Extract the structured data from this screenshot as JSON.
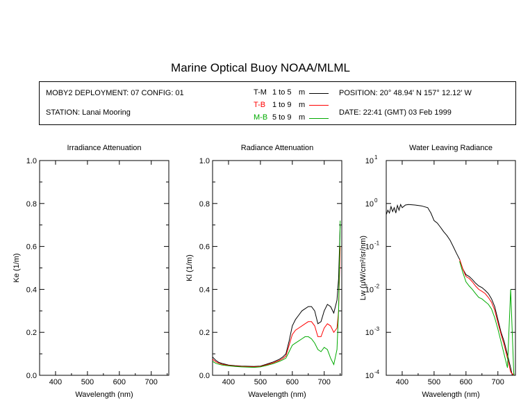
{
  "title": "Marine Optical Buoy NOAA/MLML",
  "info": {
    "deployment": "MOBY2 DEPLOYMENT: 07 CONFIG: 01",
    "station": "STATION: Lanai Mooring",
    "position": "POSITION: 20° 48.94' N   157° 12.12' W",
    "date": "DATE: 22:41 (GMT) 03 Feb 1999",
    "legend": [
      {
        "code": "T-M",
        "range": "1 to 5",
        "unit": "m",
        "color": "#000000"
      },
      {
        "code": "T-B",
        "range": "1 to 9",
        "unit": "m",
        "color": "#ff0000"
      },
      {
        "code": "M-B",
        "range": "5 to 9",
        "unit": "m",
        "color": "#00aa00"
      }
    ]
  },
  "chart_data": [
    {
      "type": "line",
      "title": "Irradiance Attenuation",
      "xlabel": "Wavelength (nm)",
      "ylabel": "Ke  (1/m)",
      "xlim": [
        350,
        755
      ],
      "ylim": [
        0,
        1
      ],
      "xticks": [
        400,
        500,
        600,
        700
      ],
      "yticks": [
        "0.0",
        "0.2",
        "0.4",
        "0.6",
        "0.8",
        "1.0"
      ],
      "series": []
    },
    {
      "type": "line",
      "title": "Radiance Attenuation",
      "xlabel": "Wavelength (nm)",
      "ylabel": "Kl  (1/m)",
      "xlim": [
        350,
        755
      ],
      "ylim": [
        0,
        1
      ],
      "xticks": [
        400,
        500,
        600,
        700
      ],
      "yticks": [
        "0.0",
        "0.2",
        "0.4",
        "0.6",
        "0.8",
        "1.0"
      ],
      "series": [
        {
          "color": "#000000",
          "x": [
            350,
            360,
            370,
            380,
            400,
            420,
            440,
            460,
            480,
            500,
            520,
            540,
            560,
            570,
            580,
            590,
            600,
            610,
            620,
            630,
            640,
            650,
            660,
            670,
            680,
            690,
            700,
            710,
            720,
            730,
            740,
            745,
            750
          ],
          "values": [
            0.085,
            0.07,
            0.06,
            0.055,
            0.048,
            0.045,
            0.043,
            0.042,
            0.041,
            0.043,
            0.052,
            0.062,
            0.075,
            0.085,
            0.1,
            0.16,
            0.23,
            0.26,
            0.28,
            0.3,
            0.31,
            0.32,
            0.32,
            0.3,
            0.24,
            0.25,
            0.3,
            0.33,
            0.32,
            0.29,
            0.35,
            0.45,
            0.7
          ]
        },
        {
          "color": "#ff0000",
          "x": [
            350,
            360,
            370,
            380,
            400,
            420,
            440,
            460,
            480,
            500,
            520,
            540,
            560,
            570,
            580,
            590,
            600,
            610,
            620,
            630,
            640,
            650,
            660,
            670,
            680,
            690,
            700,
            710,
            720,
            730,
            740,
            745,
            750
          ],
          "values": [
            0.075,
            0.063,
            0.056,
            0.051,
            0.046,
            0.043,
            0.041,
            0.04,
            0.039,
            0.041,
            0.049,
            0.058,
            0.07,
            0.078,
            0.09,
            0.14,
            0.19,
            0.21,
            0.22,
            0.23,
            0.24,
            0.25,
            0.25,
            0.23,
            0.18,
            0.18,
            0.22,
            0.24,
            0.23,
            0.2,
            0.22,
            0.3,
            0.6
          ]
        },
        {
          "color": "#00aa00",
          "x": [
            350,
            360,
            370,
            380,
            400,
            420,
            440,
            460,
            480,
            500,
            520,
            540,
            560,
            570,
            580,
            590,
            600,
            610,
            620,
            630,
            640,
            650,
            660,
            670,
            680,
            690,
            700,
            710,
            720,
            730,
            740,
            745,
            750
          ],
          "values": [
            0.065,
            0.056,
            0.051,
            0.048,
            0.044,
            0.041,
            0.039,
            0.038,
            0.037,
            0.039,
            0.046,
            0.054,
            0.065,
            0.072,
            0.08,
            0.11,
            0.14,
            0.15,
            0.16,
            0.17,
            0.18,
            0.18,
            0.17,
            0.15,
            0.12,
            0.11,
            0.13,
            0.12,
            0.08,
            0.05,
            0.12,
            0.3,
            0.72
          ]
        }
      ]
    },
    {
      "type": "line",
      "title": "Water Leaving Radiance",
      "xlabel": "Wavelength (nm)",
      "ylabel": "Lw  (μW/cm²/sr/nm)",
      "yscale": "log",
      "xlim": [
        350,
        755
      ],
      "ylim": [
        0.0001,
        10
      ],
      "xticks": [
        400,
        500,
        600,
        700
      ],
      "yticks": [
        {
          "base": "10",
          "exp": "1",
          "value": 10
        },
        {
          "base": "10",
          "exp": "0",
          "value": 1
        },
        {
          "base": "10",
          "exp": "-1",
          "value": 0.1
        },
        {
          "base": "10",
          "exp": "-2",
          "value": 0.01
        },
        {
          "base": "10",
          "exp": "-3",
          "value": 0.001
        },
        {
          "base": "10",
          "exp": "-4",
          "value": 0.0001
        }
      ],
      "series": [
        {
          "color": "#000000",
          "x": [
            350,
            355,
            360,
            365,
            370,
            375,
            380,
            385,
            390,
            395,
            400,
            410,
            420,
            440,
            460,
            480,
            490,
            500,
            510,
            520,
            530,
            540,
            550,
            560,
            570,
            580,
            590,
            600,
            610,
            620,
            630,
            640,
            650,
            660,
            670,
            680,
            690,
            700,
            710,
            720,
            730,
            740,
            745,
            750
          ],
          "values": [
            0.55,
            0.7,
            0.6,
            0.85,
            0.65,
            0.8,
            0.6,
            0.9,
            0.7,
            0.95,
            0.8,
            0.92,
            0.95,
            0.92,
            0.88,
            0.8,
            0.6,
            0.4,
            0.35,
            0.28,
            0.22,
            0.18,
            0.14,
            0.1,
            0.07,
            0.05,
            0.03,
            0.022,
            0.02,
            0.017,
            0.014,
            0.012,
            0.011,
            0.0095,
            0.008,
            0.006,
            0.004,
            0.002,
            0.001,
            0.0006,
            0.0003,
            0.00015,
            0.0001,
            0.0001
          ]
        },
        {
          "color": "#ff0000",
          "x": [
            580,
            590,
            600,
            610,
            620,
            630,
            640,
            650,
            660,
            670,
            680,
            690,
            700,
            710,
            720,
            730,
            740,
            750
          ],
          "values": [
            0.05,
            0.03,
            0.02,
            0.018,
            0.015,
            0.012,
            0.01,
            0.009,
            0.008,
            0.0065,
            0.005,
            0.0033,
            0.0017,
            0.0009,
            0.0005,
            0.00025,
            0.00012,
            0.0001
          ]
        },
        {
          "color": "#00aa00",
          "x": [
            580,
            590,
            600,
            610,
            620,
            630,
            640,
            650,
            660,
            670,
            680,
            690,
            700,
            710,
            720,
            730,
            740,
            750
          ],
          "values": [
            0.045,
            0.025,
            0.015,
            0.012,
            0.01,
            0.008,
            0.0065,
            0.006,
            0.0052,
            0.0045,
            0.0035,
            0.0022,
            0.0012,
            0.0006,
            0.0003,
            0.00015,
            0.01,
            0.0001
          ]
        }
      ]
    }
  ]
}
